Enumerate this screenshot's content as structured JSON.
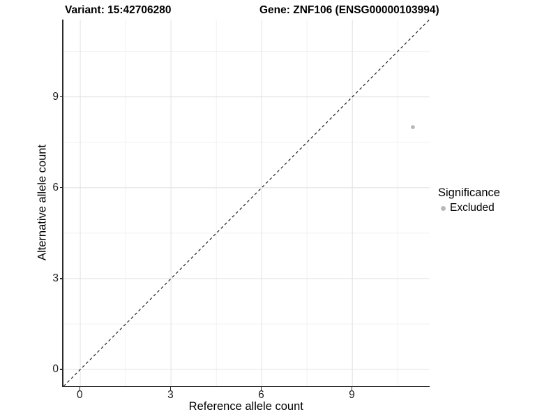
{
  "title": {
    "variant": "Variant: 15:42706280",
    "gene": "Gene: ZNF106 (ENSG00000103994)"
  },
  "x_axis": {
    "label": "Reference allele count"
  },
  "y_axis": {
    "label": "Alternative allele count"
  },
  "legend": {
    "title": "Significance",
    "items": [
      {
        "label": "Excluded",
        "color": "#b9b9b9"
      }
    ]
  },
  "colors": {
    "background": "#ffffff",
    "axis_line": "#2b2b2b",
    "grid_major": "#e4e4e4",
    "grid_minor": "#f1f1f1",
    "identity_line": "#0a0a0a",
    "point": "#b9b9b9",
    "text": "#000000"
  },
  "chart_data": {
    "type": "scatter",
    "title": "Variant: 15:42706280 — Gene: ZNF106 (ENSG00000103994)",
    "xlabel": "Reference allele count",
    "ylabel": "Alternative allele count",
    "xlim": [
      -0.55,
      11.55
    ],
    "ylim": [
      -0.55,
      11.55
    ],
    "x_ticks": [
      0,
      3,
      6,
      9
    ],
    "y_ticks": [
      0,
      3,
      6,
      9
    ],
    "minor_ticks": [
      1.5,
      4.5,
      7.5,
      10.5
    ],
    "grid": "major+minor",
    "legend_position": "right",
    "identity_line": {
      "style": "dashed",
      "color": "#0a0a0a",
      "from": [
        -0.55,
        -0.55
      ],
      "to": [
        11.55,
        11.55
      ]
    },
    "series": [
      {
        "name": "Excluded",
        "color": "#b9b9b9",
        "points": [
          {
            "x": 11,
            "y": 8
          }
        ]
      }
    ]
  }
}
